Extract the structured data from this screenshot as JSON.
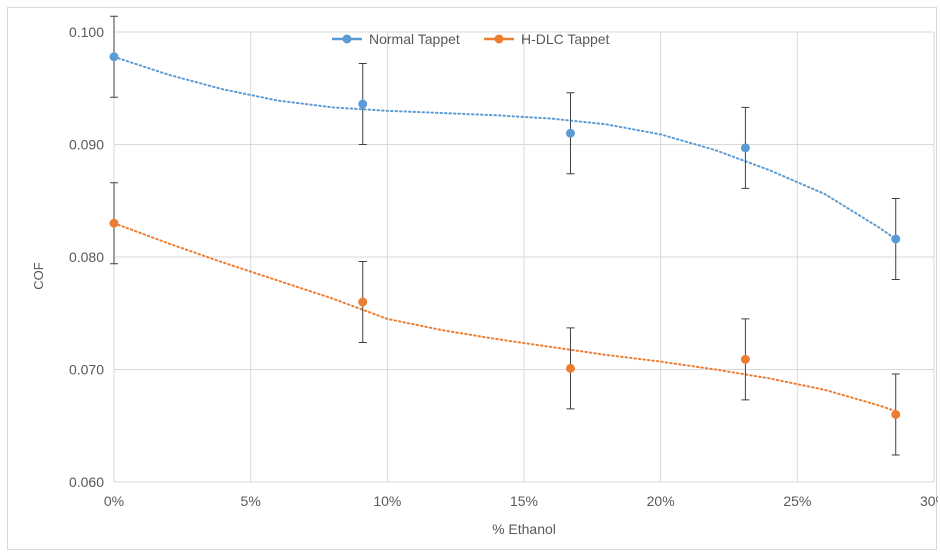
{
  "chart_data": {
    "type": "scatter",
    "xlabel": "% Ethanol",
    "ylabel": "COF",
    "xlim": [
      0,
      0.3
    ],
    "ylim": [
      0.06,
      0.1
    ],
    "x_ticks": [
      0,
      0.05,
      0.1,
      0.15,
      0.2,
      0.25,
      0.3
    ],
    "x_tick_labels": [
      "0%",
      "5%",
      "10%",
      "15%",
      "20%",
      "25%",
      "30%"
    ],
    "y_ticks": [
      0.06,
      0.07,
      0.08,
      0.09,
      0.1
    ],
    "y_tick_labels": [
      "0.060",
      "0.070",
      "0.080",
      "0.090",
      "0.100"
    ],
    "grid": true,
    "legend_position": "top",
    "trendline": "dotted polynomial",
    "series": [
      {
        "name": "Normal Tappet",
        "color": "#5b9bd5",
        "x": [
          0,
          0.091,
          0.167,
          0.231,
          0.286
        ],
        "y": [
          0.0978,
          0.0936,
          0.091,
          0.0897,
          0.0816
        ],
        "error": [
          0.0036,
          0.0036,
          0.0036,
          0.0036,
          0.0036
        ],
        "trend": [
          [
            0,
            0.0978
          ],
          [
            0.02,
            0.0962
          ],
          [
            0.04,
            0.0949
          ],
          [
            0.06,
            0.0939
          ],
          [
            0.08,
            0.0933
          ],
          [
            0.1,
            0.093
          ],
          [
            0.12,
            0.0928
          ],
          [
            0.14,
            0.0926
          ],
          [
            0.16,
            0.0923
          ],
          [
            0.18,
            0.0918
          ],
          [
            0.2,
            0.0909
          ],
          [
            0.22,
            0.0895
          ],
          [
            0.24,
            0.0877
          ],
          [
            0.26,
            0.0856
          ],
          [
            0.28,
            0.0826
          ],
          [
            0.286,
            0.0816
          ]
        ]
      },
      {
        "name": "H-DLC Tappet",
        "color": "#ed7d31",
        "x": [
          0,
          0.091,
          0.167,
          0.231,
          0.286
        ],
        "y": [
          0.083,
          0.076,
          0.0701,
          0.0709,
          0.066
        ],
        "error": [
          0.0036,
          0.0036,
          0.0036,
          0.0036,
          0.0036
        ],
        "trend": [
          [
            0,
            0.083
          ],
          [
            0.02,
            0.0812
          ],
          [
            0.04,
            0.0795
          ],
          [
            0.06,
            0.0779
          ],
          [
            0.08,
            0.0763
          ],
          [
            0.1,
            0.0745
          ],
          [
            0.12,
            0.0735
          ],
          [
            0.14,
            0.0727
          ],
          [
            0.16,
            0.072
          ],
          [
            0.18,
            0.0713
          ],
          [
            0.2,
            0.0707
          ],
          [
            0.22,
            0.07
          ],
          [
            0.24,
            0.0692
          ],
          [
            0.26,
            0.0682
          ],
          [
            0.28,
            0.0668
          ],
          [
            0.286,
            0.0663
          ]
        ]
      }
    ]
  }
}
